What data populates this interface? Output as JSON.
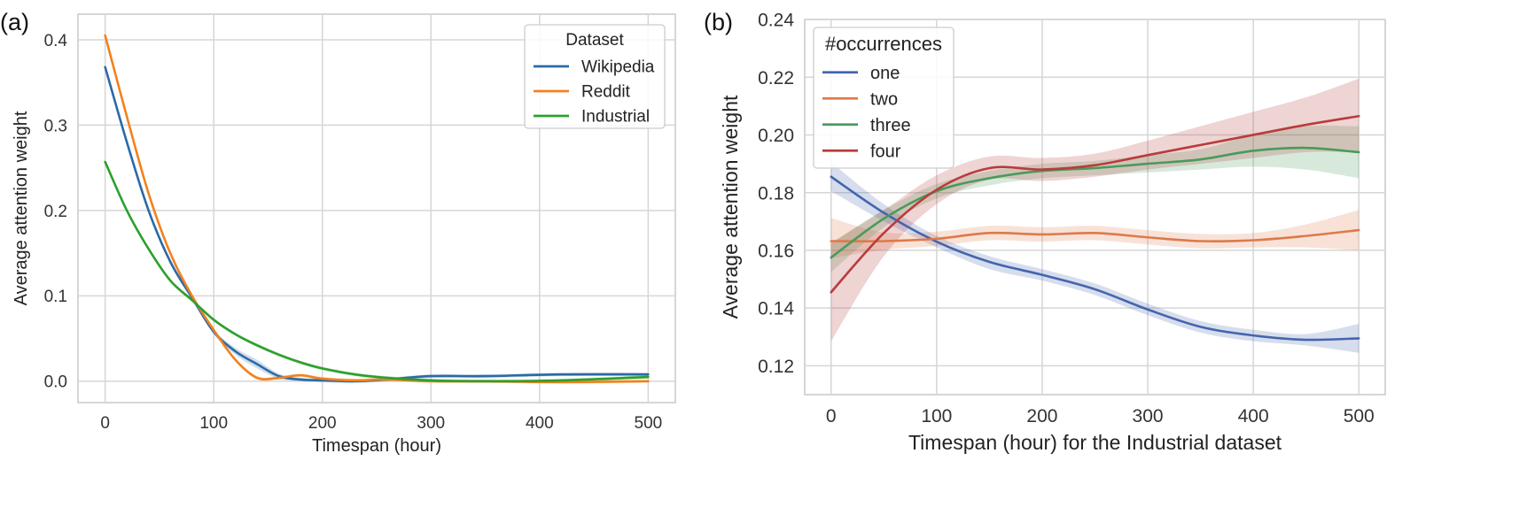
{
  "chart_data": [
    {
      "type": "line",
      "panel_label": "(a)",
      "xlabel": "Timespan (hour)",
      "ylabel": "Average attention weight",
      "xlim": [
        -25,
        525
      ],
      "ylim": [
        -0.025,
        0.43
      ],
      "xticks": [
        0,
        100,
        200,
        300,
        400,
        500
      ],
      "xtick_labels": [
        "0",
        "100",
        "200",
        "300",
        "400",
        "500"
      ],
      "yticks": [
        0.0,
        0.1,
        0.2,
        0.3,
        0.4
      ],
      "ytick_labels": [
        "0.0",
        "0.1",
        "0.2",
        "0.3",
        "0.4"
      ],
      "grid": true,
      "legend": {
        "title": "Dataset",
        "placement": "top-right"
      },
      "series": [
        {
          "name": "Wikipedia",
          "color": "#2a6aa8",
          "x": [
            0,
            20,
            40,
            60,
            80,
            100,
            120,
            140,
            160,
            180,
            200,
            230,
            260,
            300,
            350,
            420,
            500
          ],
          "y": [
            0.368,
            0.28,
            0.2,
            0.14,
            0.098,
            0.058,
            0.035,
            0.02,
            0.006,
            0.002,
            0.001,
            0.0,
            0.002,
            0.006,
            0.006,
            0.008,
            0.008
          ],
          "band": [
            0.003,
            0.003,
            0.003,
            0.003,
            0.003,
            0.003,
            0.004,
            0.005,
            0.003,
            0.002,
            0.002,
            0.002,
            0.002,
            0.002,
            0.002,
            0.002,
            0.002
          ]
        },
        {
          "name": "Reddit",
          "color": "#f2811d",
          "x": [
            0,
            20,
            40,
            60,
            80,
            100,
            120,
            140,
            160,
            180,
            200,
            230,
            260,
            300,
            350,
            420,
            500
          ],
          "y": [
            0.405,
            0.31,
            0.22,
            0.15,
            0.1,
            0.06,
            0.025,
            0.004,
            0.004,
            0.007,
            0.003,
            0.001,
            0.002,
            0.0,
            0.0,
            -0.001,
            0.0
          ],
          "band": [
            0.002,
            0.002,
            0.002,
            0.002,
            0.002,
            0.002,
            0.002,
            0.002,
            0.002,
            0.002,
            0.002,
            0.002,
            0.002,
            0.002,
            0.002,
            0.002,
            0.002
          ]
        },
        {
          "name": "Industrial",
          "color": "#2ca02c",
          "x": [
            0,
            20,
            40,
            60,
            80,
            100,
            120,
            140,
            160,
            180,
            200,
            230,
            260,
            300,
            350,
            420,
            500
          ],
          "y": [
            0.257,
            0.2,
            0.155,
            0.118,
            0.095,
            0.072,
            0.055,
            0.042,
            0.031,
            0.022,
            0.015,
            0.008,
            0.004,
            0.001,
            0.0,
            0.001,
            0.005
          ],
          "band": [
            0.002,
            0.002,
            0.002,
            0.002,
            0.002,
            0.002,
            0.002,
            0.002,
            0.002,
            0.002,
            0.002,
            0.002,
            0.002,
            0.002,
            0.002,
            0.002,
            0.002
          ]
        }
      ]
    },
    {
      "type": "line",
      "panel_label": "(b)",
      "xlabel": "Timespan (hour) for the Industrial dataset",
      "ylabel": "Average attention weight",
      "xlim": [
        -25,
        525
      ],
      "ylim": [
        0.11,
        0.24
      ],
      "xticks": [
        0,
        100,
        200,
        300,
        400,
        500
      ],
      "xtick_labels": [
        "0",
        "100",
        "200",
        "300",
        "400",
        "500"
      ],
      "yticks": [
        0.12,
        0.14,
        0.16,
        0.18,
        0.2,
        0.22,
        0.24
      ],
      "ytick_labels": [
        "0.12",
        "0.14",
        "0.16",
        "0.18",
        "0.20",
        "0.22",
        "0.24"
      ],
      "grid": true,
      "legend": {
        "title": "#occurrences",
        "placement": "top-left"
      },
      "series": [
        {
          "name": "one",
          "color": "#4465ae",
          "x": [
            0,
            50,
            100,
            150,
            200,
            250,
            300,
            350,
            400,
            450,
            500
          ],
          "y": [
            0.1855,
            0.173,
            0.163,
            0.156,
            0.1515,
            0.1465,
            0.1395,
            0.1335,
            0.1305,
            0.129,
            0.1295
          ],
          "lo": [
            0.1805,
            0.17,
            0.161,
            0.1535,
            0.1495,
            0.1445,
            0.1375,
            0.1315,
            0.1285,
            0.127,
            0.1245
          ],
          "hi": [
            0.1905,
            0.176,
            0.165,
            0.158,
            0.1535,
            0.1485,
            0.1415,
            0.1355,
            0.1325,
            0.131,
            0.1345
          ]
        },
        {
          "name": "two",
          "color": "#dd7a4a",
          "x": [
            0,
            50,
            100,
            150,
            200,
            250,
            300,
            350,
            400,
            450,
            500
          ],
          "y": [
            0.1632,
            0.1632,
            0.164,
            0.166,
            0.1655,
            0.166,
            0.1645,
            0.1632,
            0.1635,
            0.165,
            0.167
          ],
          "lo": [
            0.1572,
            0.1602,
            0.1615,
            0.1635,
            0.163,
            0.1635,
            0.162,
            0.1607,
            0.161,
            0.161,
            0.16
          ],
          "hi": [
            0.1712,
            0.1662,
            0.1665,
            0.1685,
            0.168,
            0.1685,
            0.167,
            0.1657,
            0.166,
            0.169,
            0.174
          ]
        },
        {
          "name": "three",
          "color": "#4a9a5a",
          "x": [
            0,
            50,
            100,
            150,
            200,
            250,
            300,
            350,
            400,
            450,
            500
          ],
          "y": [
            0.1575,
            0.171,
            0.1805,
            0.185,
            0.1875,
            0.1885,
            0.19,
            0.1915,
            0.1945,
            0.1955,
            0.194
          ],
          "lo": [
            0.1525,
            0.168,
            0.178,
            0.1825,
            0.185,
            0.186,
            0.187,
            0.188,
            0.189,
            0.188,
            0.185
          ],
          "hi": [
            0.1625,
            0.174,
            0.183,
            0.1875,
            0.19,
            0.191,
            0.193,
            0.195,
            0.2,
            0.203,
            0.203
          ]
        },
        {
          "name": "four",
          "color": "#b83c3c",
          "x": [
            0,
            50,
            100,
            150,
            200,
            250,
            300,
            350,
            400,
            450,
            500
          ],
          "y": [
            0.1455,
            0.166,
            0.181,
            0.1885,
            0.188,
            0.1895,
            0.193,
            0.1965,
            0.2,
            0.2035,
            0.2065
          ],
          "lo": [
            0.1285,
            0.158,
            0.176,
            0.1845,
            0.184,
            0.1855,
            0.188,
            0.19,
            0.192,
            0.194,
            0.194
          ],
          "hi": [
            0.1625,
            0.174,
            0.186,
            0.1925,
            0.192,
            0.1935,
            0.198,
            0.203,
            0.208,
            0.213,
            0.2195
          ]
        }
      ]
    }
  ]
}
